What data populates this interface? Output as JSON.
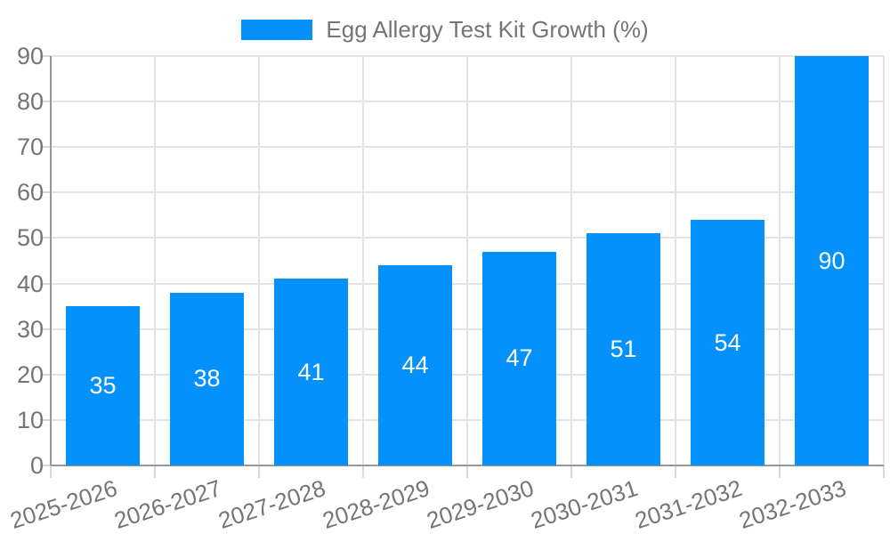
{
  "legend": {
    "label": "Egg Allergy Test Kit Growth (%)",
    "swatch_color": "#0591FB"
  },
  "chart_data": {
    "type": "bar",
    "title": "",
    "xlabel": "",
    "ylabel": "",
    "categories": [
      "2025-2026",
      "2026-2027",
      "2027-2028",
      "2028-2029",
      "2029-2030",
      "2030-2031",
      "2031-2032",
      "2032-2033"
    ],
    "series": [
      {
        "name": "Egg Allergy Test Kit Growth (%)",
        "values": [
          35,
          38,
          41,
          44,
          47,
          51,
          54,
          90
        ]
      }
    ],
    "value_labels_shown": true,
    "ylim": [
      0,
      90
    ],
    "yticks": [
      0,
      10,
      20,
      30,
      40,
      50,
      60,
      70,
      80,
      90
    ],
    "grid": true,
    "legend_position": "top-center",
    "xtick_rotation_deg": -18,
    "colors": {
      "bar": "#0591FB",
      "value_label": "#FFFFFF",
      "axis_text": "#757575",
      "gridline": "#E3E3E3",
      "axis_line": "#999999",
      "tick": "#D9D9D9",
      "background": "#FFFFFF"
    }
  }
}
